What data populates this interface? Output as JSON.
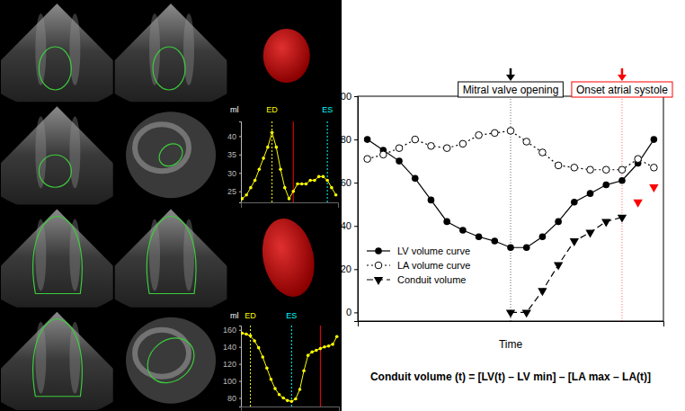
{
  "chart_data": [
    {
      "type": "line",
      "x_label": "Time",
      "caption": "Conduit volume (t) = [LV(t) – LV min] – [LA max – LA(t)]",
      "x": [
        0,
        1,
        2,
        3,
        4,
        5,
        6,
        7,
        8,
        9,
        10,
        11,
        12,
        13,
        14,
        15,
        16,
        17,
        18
      ],
      "xlim": [
        -0.6,
        18.6
      ],
      "ylim": [
        -4,
        100
      ],
      "yticks": [
        0,
        20,
        40,
        60,
        80,
        100
      ],
      "tick_labels": "y",
      "legend": "lower left",
      "series": [
        {
          "name": "LV volume curve",
          "color": "#000000",
          "marker": "circle",
          "line_style": "solid",
          "values": [
            80,
            75,
            70,
            62,
            52,
            42,
            38,
            35,
            33,
            30,
            30,
            35,
            42,
            51,
            55,
            59,
            61,
            69,
            80
          ]
        },
        {
          "name": "LA volume curve",
          "color": "#000000",
          "marker": "circle_open",
          "line_style": "dotted",
          "values": [
            71,
            73,
            76,
            80,
            77,
            76,
            78,
            82,
            83,
            84,
            79,
            74,
            68,
            67,
            66,
            66,
            66,
            71,
            67
          ]
        },
        {
          "name": "Conduit volume",
          "color": "#000000",
          "marker": "triangle_down",
          "line_style": "dashed",
          "values": [
            null,
            null,
            null,
            null,
            null,
            null,
            null,
            null,
            null,
            0,
            0,
            10,
            22,
            33,
            37,
            42,
            44,
            null,
            null
          ]
        },
        {
          "color": "#ff0000",
          "marker": "triangle_down",
          "line_style": "none",
          "values": [
            null,
            null,
            null,
            null,
            null,
            null,
            null,
            null,
            null,
            null,
            null,
            null,
            null,
            null,
            null,
            null,
            null,
            51,
            58
          ]
        }
      ],
      "annotations": [
        {
          "label": "Mitral valve opening",
          "x": 9,
          "color": "#000000"
        },
        {
          "label": "Onset atrial systole",
          "x": 16,
          "color": "#ff0000"
        }
      ]
    },
    {
      "type": "line",
      "y_label": "ml",
      "x": [
        0,
        1,
        2,
        3,
        4,
        5,
        6,
        7,
        8,
        9,
        10,
        11,
        12,
        13,
        14,
        15,
        16,
        17,
        18,
        19,
        20,
        21,
        22
      ],
      "xlim": [
        -0.3,
        22.5
      ],
      "ylim": [
        22,
        44
      ],
      "yticks": [
        25,
        30,
        35,
        40
      ],
      "tick_labels": "y",
      "series": [
        {
          "color": "#ffff00",
          "marker": "circle",
          "line_style": "solid",
          "values": [
            23,
            24,
            26,
            28,
            31,
            34,
            37,
            41,
            37,
            31,
            26,
            23,
            25,
            27,
            27,
            27,
            28,
            28,
            29,
            29,
            28,
            26,
            24
          ]
        }
      ],
      "annotations": [
        {
          "label": "ED",
          "x": 7,
          "color": "#ffff00"
        },
        {
          "label": "ES",
          "x": 20,
          "color": "#00ffff"
        }
      ],
      "vlines": [
        {
          "x": 12,
          "color": "#ff0000"
        }
      ]
    },
    {
      "type": "line",
      "y_label": "ml",
      "x": [
        0,
        1,
        2,
        3,
        4,
        5,
        6,
        7,
        8,
        9,
        10,
        11,
        12,
        13,
        14,
        15,
        16,
        17,
        18,
        19,
        20,
        21,
        22,
        23
      ],
      "xlim": [
        -0.3,
        23.5
      ],
      "ylim": [
        70,
        165
      ],
      "yticks": [
        80,
        100,
        120,
        140,
        160
      ],
      "tick_labels": "y",
      "series": [
        {
          "color": "#ffff00",
          "marker": "circle",
          "line_style": "solid",
          "values": [
            156,
            155,
            153,
            147,
            139,
            128,
            115,
            102,
            91,
            84,
            80,
            77,
            76,
            79,
            90,
            112,
            130,
            134,
            136,
            138,
            140,
            141,
            143,
            152
          ]
        }
      ],
      "annotations": [
        {
          "label": "ED",
          "x": 2,
          "color": "#ffff00"
        },
        {
          "label": "ES",
          "x": 12,
          "color": "#00ffff"
        }
      ],
      "vlines": [
        {
          "x": 19,
          "color": "#ff0000"
        }
      ]
    }
  ]
}
